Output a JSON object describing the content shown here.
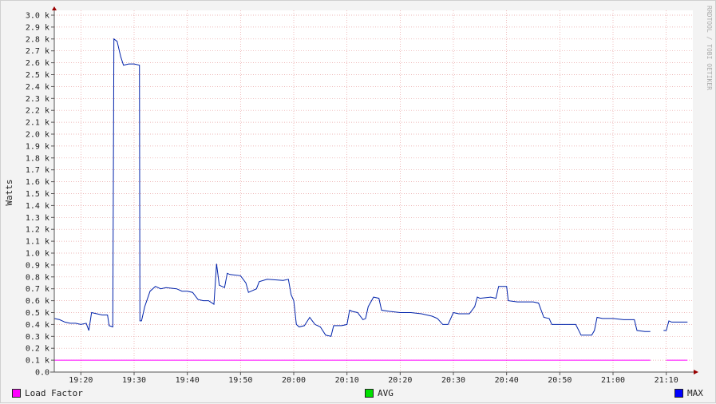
{
  "watermark": "RRDTOOL / TOBI OETIKER",
  "colors": {
    "load_factor": "#ff00ff",
    "avg": "#00e000",
    "max": "#0000ff",
    "line": "#0022aa",
    "background": "#ffffff",
    "grid": "#e8a0a0"
  },
  "legend": [
    {
      "label": "Load Factor",
      "color": "#ff00ff"
    },
    {
      "label": "AVG",
      "color": "#00e000"
    },
    {
      "label": "MAX",
      "color": "#0000ff"
    }
  ],
  "chart_data": {
    "type": "line",
    "ylabel": "Watts",
    "ylim": [
      0,
      3.05
    ],
    "xlim": [
      "19:15",
      "21:15"
    ],
    "grid": true,
    "legend_position": "bottom",
    "y_ticks": [
      {
        "value": 0.0,
        "label": "0.0"
      },
      {
        "value": 0.1,
        "label": "0.1 k"
      },
      {
        "value": 0.2,
        "label": "0.2 k"
      },
      {
        "value": 0.3,
        "label": "0.3 k"
      },
      {
        "value": 0.4,
        "label": "0.4 k"
      },
      {
        "value": 0.5,
        "label": "0.5 k"
      },
      {
        "value": 0.6,
        "label": "0.6 k"
      },
      {
        "value": 0.7,
        "label": "0.7 k"
      },
      {
        "value": 0.8,
        "label": "0.8 k"
      },
      {
        "value": 0.9,
        "label": "0.9 k"
      },
      {
        "value": 1.0,
        "label": "1.0 k"
      },
      {
        "value": 1.1,
        "label": "1.1 k"
      },
      {
        "value": 1.2,
        "label": "1.2 k"
      },
      {
        "value": 1.3,
        "label": "1.3 k"
      },
      {
        "value": 1.4,
        "label": "1.4 k"
      },
      {
        "value": 1.5,
        "label": "1.5 k"
      },
      {
        "value": 1.6,
        "label": "1.6 k"
      },
      {
        "value": 1.7,
        "label": "1.7 k"
      },
      {
        "value": 1.8,
        "label": "1.8 k"
      },
      {
        "value": 1.9,
        "label": "1.9 k"
      },
      {
        "value": 2.0,
        "label": "2.0 k"
      },
      {
        "value": 2.1,
        "label": "2.1 k"
      },
      {
        "value": 2.2,
        "label": "2.2 k"
      },
      {
        "value": 2.3,
        "label": "2.3 k"
      },
      {
        "value": 2.4,
        "label": "2.4 k"
      },
      {
        "value": 2.5,
        "label": "2.5 k"
      },
      {
        "value": 2.6,
        "label": "2.6 k"
      },
      {
        "value": 2.7,
        "label": "2.7 k"
      },
      {
        "value": 2.8,
        "label": "2.8 k"
      },
      {
        "value": 2.9,
        "label": "2.9 k"
      },
      {
        "value": 3.0,
        "label": "3.0 k"
      }
    ],
    "x_ticks": [
      "19:20",
      "19:30",
      "19:40",
      "19:50",
      "20:00",
      "20:10",
      "20:20",
      "20:30",
      "20:40",
      "20:50",
      "21:00",
      "21:10"
    ],
    "series": [
      {
        "name": "Load Factor",
        "segments": [
          [
            [
              "19:15",
              0.1
            ],
            [
              "21:07",
              0.1
            ]
          ],
          [
            "__gap__"
          ],
          [
            [
              "21:10",
              0.1
            ],
            [
              "21:14",
              0.1
            ]
          ]
        ]
      },
      {
        "name": "MAX",
        "segments": [
          [
            [
              "19:15",
              0.45
            ],
            [
              "19:16",
              0.44
            ],
            [
              "19:17",
              0.42
            ],
            [
              "19:18",
              0.41
            ],
            [
              "19:19",
              0.41
            ],
            [
              "19:20",
              0.4
            ],
            [
              "19:21",
              0.41
            ],
            [
              "19:21.5",
              0.35
            ],
            [
              "19:22",
              0.5
            ],
            [
              "19:23",
              0.49
            ],
            [
              "19:24",
              0.48
            ],
            [
              "19:25",
              0.48
            ],
            [
              "19:25.3",
              0.39
            ],
            [
              "19:26",
              0.38
            ],
            [
              "19:26.2",
              2.8
            ],
            [
              "19:26.8",
              2.78
            ],
            [
              "19:27.5",
              2.65
            ],
            [
              "19:28",
              2.58
            ],
            [
              "19:29",
              2.59
            ],
            [
              "19:30",
              2.59
            ],
            [
              "19:31",
              2.58
            ],
            [
              "19:31.1",
              0.43
            ],
            [
              "19:31.4",
              0.43
            ],
            [
              "19:32",
              0.55
            ],
            [
              "19:33",
              0.68
            ],
            [
              "19:34",
              0.72
            ],
            [
              "19:35",
              0.7
            ],
            [
              "19:36",
              0.71
            ],
            [
              "19:38",
              0.7
            ],
            [
              "19:39",
              0.68
            ],
            [
              "19:40",
              0.68
            ],
            [
              "19:41",
              0.67
            ],
            [
              "19:42",
              0.61
            ],
            [
              "19:43",
              0.6
            ],
            [
              "19:44",
              0.6
            ],
            [
              "19:45",
              0.57
            ],
            [
              "19:45.5",
              0.91
            ],
            [
              "19:46",
              0.73
            ],
            [
              "19:47",
              0.71
            ],
            [
              "19:47.5",
              0.83
            ],
            [
              "19:48",
              0.82
            ],
            [
              "19:50",
              0.81
            ],
            [
              "19:51",
              0.75
            ],
            [
              "19:51.5",
              0.67
            ],
            [
              "19:52",
              0.68
            ],
            [
              "19:53",
              0.7
            ],
            [
              "19:53.5",
              0.76
            ],
            [
              "19:55",
              0.78
            ],
            [
              "19:58",
              0.77
            ],
            [
              "19:59",
              0.78
            ],
            [
              "19:59.5",
              0.65
            ],
            [
              "20:00",
              0.6
            ],
            [
              "20:00.5",
              0.4
            ],
            [
              "20:01",
              0.38
            ],
            [
              "20:02",
              0.39
            ],
            [
              "20:03",
              0.46
            ],
            [
              "20:03.5",
              0.43
            ],
            [
              "20:04",
              0.4
            ],
            [
              "20:05",
              0.38
            ],
            [
              "20:06",
              0.31
            ],
            [
              "20:07",
              0.3
            ],
            [
              "20:07.5",
              0.39
            ],
            [
              "20:08",
              0.39
            ],
            [
              "20:09",
              0.39
            ],
            [
              "20:10",
              0.4
            ],
            [
              "20:10.5",
              0.52
            ],
            [
              "20:11",
              0.51
            ],
            [
              "20:12",
              0.5
            ],
            [
              "20:13",
              0.44
            ],
            [
              "20:13.5",
              0.45
            ],
            [
              "20:14",
              0.55
            ],
            [
              "20:15",
              0.63
            ],
            [
              "20:16",
              0.62
            ],
            [
              "20:16.5",
              0.52
            ],
            [
              "20:18",
              0.51
            ],
            [
              "20:20",
              0.5
            ],
            [
              "20:22",
              0.5
            ],
            [
              "20:24",
              0.49
            ],
            [
              "20:25",
              0.48
            ],
            [
              "20:26",
              0.47
            ],
            [
              "20:27",
              0.45
            ],
            [
              "20:28",
              0.4
            ],
            [
              "20:29",
              0.4
            ],
            [
              "20:30",
              0.5
            ],
            [
              "20:31",
              0.49
            ],
            [
              "20:33",
              0.49
            ],
            [
              "20:34",
              0.55
            ],
            [
              "20:34.5",
              0.63
            ],
            [
              "20:35",
              0.62
            ],
            [
              "20:37",
              0.63
            ],
            [
              "20:38",
              0.62
            ],
            [
              "20:38.5",
              0.72
            ],
            [
              "20:40",
              0.72
            ],
            [
              "20:40.3",
              0.6
            ],
            [
              "20:42",
              0.59
            ],
            [
              "20:45",
              0.59
            ],
            [
              "20:46",
              0.58
            ],
            [
              "20:47",
              0.46
            ],
            [
              "20:48",
              0.45
            ],
            [
              "20:48.5",
              0.4
            ],
            [
              "20:50",
              0.4
            ],
            [
              "20:53",
              0.4
            ],
            [
              "20:54",
              0.31
            ],
            [
              "20:56",
              0.31
            ],
            [
              "20:56.5",
              0.35
            ],
            [
              "20:57",
              0.46
            ],
            [
              "20:58",
              0.45
            ],
            [
              "21:00",
              0.45
            ],
            [
              "21:02",
              0.44
            ],
            [
              "21:04",
              0.44
            ],
            [
              "21:04.5",
              0.35
            ],
            [
              "21:06",
              0.34
            ],
            [
              "21:07",
              0.34
            ]
          ],
          [
            [
              "21:09.5",
              0.35
            ],
            [
              "21:10",
              0.35
            ],
            [
              "21:10.5",
              0.43
            ],
            [
              "21:11",
              0.42
            ],
            [
              "21:12",
              0.42
            ],
            [
              "21:14",
              0.42
            ]
          ]
        ]
      }
    ]
  }
}
